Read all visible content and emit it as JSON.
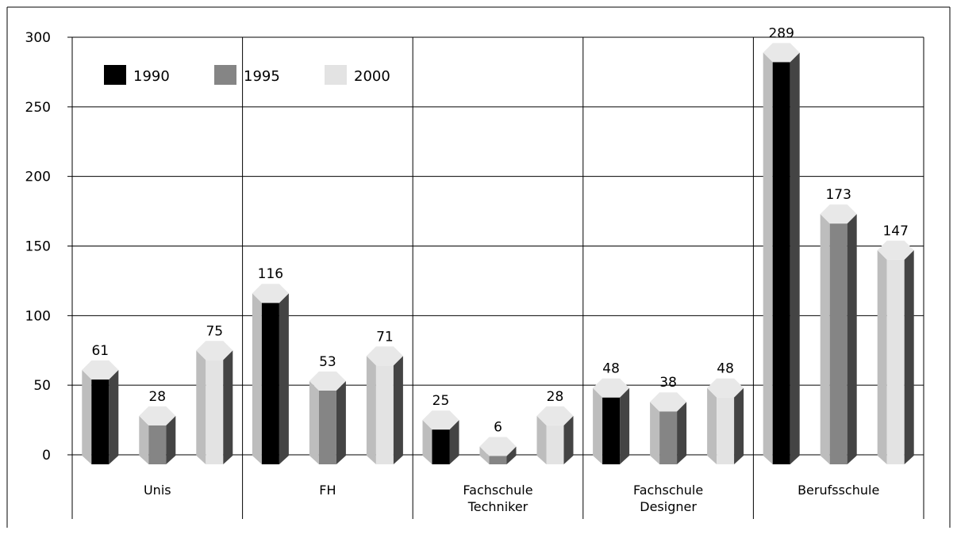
{
  "chart_data": {
    "type": "bar",
    "title": "",
    "xlabel": "",
    "ylabel": "",
    "ylim": [
      0,
      300
    ],
    "yticks": [
      0,
      50,
      100,
      150,
      200,
      250,
      300
    ],
    "grid": true,
    "legend_position": "top-left",
    "categories": [
      [
        "Unis"
      ],
      [
        "FH"
      ],
      [
        "Fachschule",
        "Techniker"
      ],
      [
        "Fachschule",
        "Designer"
      ],
      [
        "Berufsschule"
      ]
    ],
    "series": [
      {
        "name": "1990",
        "values": [
          61,
          116,
          25,
          48,
          289
        ],
        "color": "#000000"
      },
      {
        "name": "1995",
        "values": [
          28,
          53,
          6,
          38,
          173
        ],
        "color": "#858585"
      },
      {
        "name": "2000",
        "values": [
          75,
          71,
          28,
          48,
          147
        ],
        "color": "#e3e3e3"
      }
    ]
  }
}
